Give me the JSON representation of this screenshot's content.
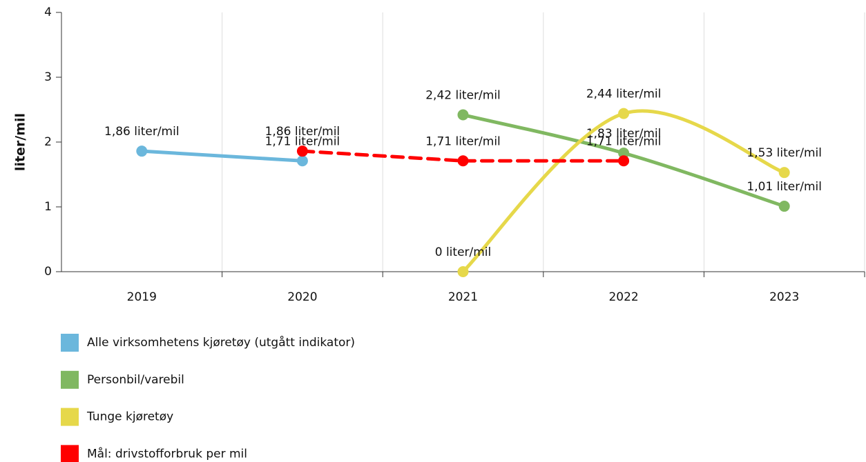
{
  "chart_data": {
    "type": "line",
    "y_label": "liter/mil",
    "categories": [
      "2019",
      "2020",
      "2021",
      "2022",
      "2023"
    ],
    "ylim": [
      0,
      4
    ],
    "yticks": [
      0,
      1,
      2,
      3,
      4
    ],
    "series": [
      {
        "name": "Alle virksomhetens kjøretøy (utgått indikator)",
        "color": "#6bb7dc",
        "dashed": false,
        "smooth": false,
        "values": [
          1.86,
          1.71,
          null,
          null,
          null
        ],
        "value_labels": [
          "1,86 liter/mil",
          "1,71 liter/mil",
          null,
          null,
          null
        ]
      },
      {
        "name": "Personbil/varebil",
        "color": "#80b861",
        "dashed": false,
        "smooth": true,
        "values": [
          null,
          null,
          2.42,
          1.83,
          1.01
        ],
        "value_labels": [
          null,
          null,
          "2,42 liter/mil",
          "1,83 liter/mil",
          "1,01 liter/mil"
        ]
      },
      {
        "name": "Tunge kjøretøy",
        "color": "#e6d84a",
        "dashed": false,
        "smooth": true,
        "values": [
          null,
          null,
          0,
          2.44,
          1.53
        ],
        "value_labels": [
          null,
          null,
          "0 liter/mil",
          "2,44 liter/mil",
          "1,53 liter/mil"
        ]
      },
      {
        "name": "Mål: drivstofforbruk per mil",
        "color": "#ff0000",
        "dashed": true,
        "smooth": false,
        "values": [
          null,
          1.86,
          1.71,
          1.71,
          null
        ],
        "value_labels": [
          null,
          "1,86 liter/mil",
          "1,71 liter/mil",
          "1,71 liter/mil",
          null
        ]
      }
    ]
  }
}
